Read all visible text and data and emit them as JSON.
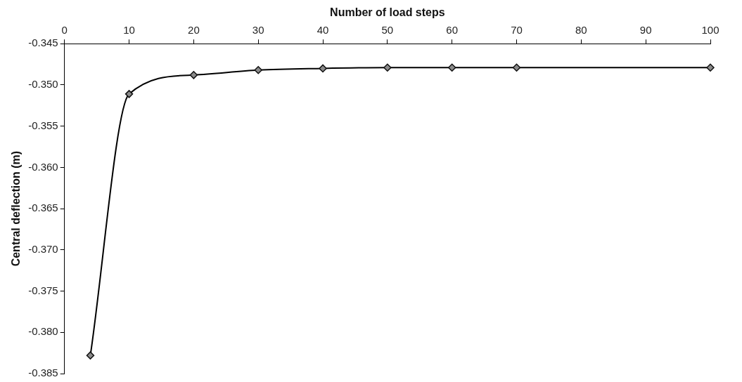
{
  "chart_data": {
    "type": "line",
    "xlabel": "Number of load steps",
    "ylabel": "Central deflection (m)",
    "x": [
      4,
      10,
      20,
      30,
      40,
      50,
      60,
      70,
      100
    ],
    "series": [
      {
        "color": "#000000",
        "values": [
          -0.3828,
          -0.3511,
          -0.3488,
          -0.3482,
          -0.348,
          -0.3479,
          -0.3479,
          -0.3479,
          -0.3479
        ]
      }
    ],
    "xlim": [
      0,
      100
    ],
    "xticks": [
      0,
      10,
      20,
      30,
      40,
      50,
      60,
      70,
      80,
      90,
      100
    ],
    "ylim": [
      -0.385,
      -0.345
    ],
    "yticks": [
      {
        "value": -0.345,
        "label": "-0.345"
      },
      {
        "value": -0.35,
        "label": "-0.350"
      },
      {
        "value": -0.355,
        "label": "-0.355"
      },
      {
        "value": -0.36,
        "label": "-0.360"
      },
      {
        "value": -0.365,
        "label": "-0.365"
      },
      {
        "value": -0.37,
        "label": "-0.370"
      },
      {
        "value": -0.375,
        "label": "-0.375"
      },
      {
        "value": -0.38,
        "label": "-0.380"
      },
      {
        "value": -0.385,
        "label": "-0.385"
      }
    ],
    "grid": false,
    "legend": false,
    "marker": "diamond",
    "line_style": "solid"
  }
}
